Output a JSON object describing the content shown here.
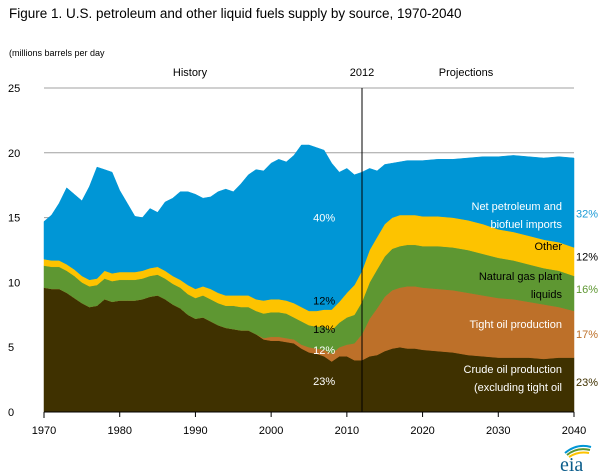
{
  "header": {
    "title": "Figure 1. U.S. petroleum and other liquid fuels supply by source, 1970-2040",
    "units": "(millions barrels per day"
  },
  "logo": {
    "text": "eia",
    "icon": "eia-logo-icon"
  },
  "colors": {
    "crude": "#3f3100",
    "tight": "#bd7029",
    "ngpl": "#5e9732",
    "other": "#fdc300",
    "imports": "#0096d6",
    "grid": "#a0a0a0"
  },
  "chart_data": {
    "type": "area",
    "title": "Figure 1. U.S. petroleum and other liquid fuels supply by source, 1970-2040",
    "ylabel": "millions barrels per day",
    "xlabel": "",
    "xlim": [
      1970,
      2040
    ],
    "ylim": [
      0,
      25
    ],
    "yticks": [
      0,
      5,
      10,
      15,
      20,
      25
    ],
    "xticks": [
      1970,
      1980,
      1990,
      2000,
      2010,
      2020,
      2030,
      2040
    ],
    "grid": true,
    "stacked": true,
    "divider": {
      "year": 2012,
      "label": "2012",
      "left_label": "History",
      "right_label": "Projections"
    },
    "x": [
      1970,
      1971,
      1972,
      1973,
      1974,
      1975,
      1976,
      1977,
      1978,
      1979,
      1980,
      1981,
      1982,
      1983,
      1984,
      1985,
      1986,
      1987,
      1988,
      1989,
      1990,
      1991,
      1992,
      1993,
      1994,
      1995,
      1996,
      1997,
      1998,
      1999,
      2000,
      2001,
      2002,
      2003,
      2004,
      2005,
      2006,
      2007,
      2008,
      2009,
      2010,
      2011,
      2012,
      2013,
      2014,
      2015,
      2016,
      2017,
      2018,
      2019,
      2020,
      2022,
      2024,
      2026,
      2028,
      2030,
      2032,
      2034,
      2036,
      2038,
      2040
    ],
    "series": [
      {
        "name": "Crude oil production (excluding tight oil)",
        "color": "#3f3100",
        "values": [
          9.6,
          9.5,
          9.5,
          9.2,
          8.8,
          8.4,
          8.1,
          8.2,
          8.7,
          8.5,
          8.6,
          8.6,
          8.6,
          8.7,
          8.9,
          9.0,
          8.7,
          8.3,
          8.0,
          7.5,
          7.2,
          7.3,
          7.0,
          6.7,
          6.5,
          6.4,
          6.3,
          6.3,
          6.0,
          5.6,
          5.5,
          5.5,
          5.4,
          5.3,
          4.9,
          4.6,
          4.5,
          4.3,
          3.9,
          4.3,
          4.3,
          4.0,
          4.0,
          4.3,
          4.4,
          4.7,
          4.9,
          5.0,
          4.9,
          4.9,
          4.8,
          4.7,
          4.6,
          4.4,
          4.3,
          4.2,
          4.2,
          4.2,
          4.1,
          4.2,
          4.2
        ]
      },
      {
        "name": "Tight oil production",
        "color": "#bd7029",
        "values": [
          0,
          0,
          0,
          0,
          0,
          0,
          0,
          0,
          0,
          0,
          0,
          0,
          0,
          0,
          0,
          0,
          0,
          0,
          0,
          0,
          0,
          0,
          0,
          0,
          0,
          0,
          0,
          0,
          0,
          0.1,
          0.3,
          0.3,
          0.3,
          0.3,
          0.3,
          0.4,
          0.4,
          0.5,
          0.6,
          0.7,
          0.9,
          1.3,
          2.0,
          2.9,
          3.6,
          4.2,
          4.5,
          4.6,
          4.8,
          4.8,
          4.8,
          4.8,
          4.8,
          4.8,
          4.7,
          4.6,
          4.5,
          4.3,
          4.2,
          3.9,
          3.6
        ]
      },
      {
        "name": "Natural gas plant liquids",
        "color": "#5e9732",
        "values": [
          1.7,
          1.7,
          1.7,
          1.7,
          1.7,
          1.6,
          1.6,
          1.6,
          1.6,
          1.6,
          1.6,
          1.6,
          1.6,
          1.6,
          1.6,
          1.6,
          1.6,
          1.6,
          1.6,
          1.6,
          1.6,
          1.7,
          1.7,
          1.7,
          1.7,
          1.8,
          1.8,
          1.8,
          1.8,
          1.9,
          1.9,
          1.9,
          1.9,
          1.7,
          1.8,
          1.7,
          1.7,
          1.8,
          1.8,
          1.9,
          2.1,
          2.2,
          2.5,
          2.8,
          3.0,
          3.1,
          3.2,
          3.2,
          3.2,
          3.2,
          3.2,
          3.3,
          3.3,
          3.3,
          3.2,
          3.1,
          3.0,
          2.9,
          2.8,
          2.8,
          2.7
        ]
      },
      {
        "name": "Other",
        "color": "#fdc300",
        "values": [
          0.5,
          0.5,
          0.5,
          0.5,
          0.5,
          0.5,
          0.5,
          0.5,
          0.6,
          0.6,
          0.6,
          0.6,
          0.6,
          0.6,
          0.6,
          0.6,
          0.6,
          0.6,
          0.6,
          0.7,
          0.7,
          0.7,
          0.8,
          0.8,
          0.8,
          0.8,
          0.9,
          0.9,
          0.9,
          1.0,
          1.0,
          1.0,
          1.0,
          1.1,
          1.1,
          1.1,
          1.2,
          1.3,
          1.6,
          1.6,
          1.9,
          2.3,
          2.4,
          2.5,
          2.5,
          2.5,
          2.4,
          2.4,
          2.3,
          2.3,
          2.3,
          2.3,
          2.3,
          2.3,
          2.3,
          2.2,
          2.2,
          2.2,
          2.2,
          2.2,
          2.2
        ]
      },
      {
        "name": "Net petroleum and biofuel imports",
        "color": "#0096d6",
        "values": [
          2.9,
          3.5,
          4.4,
          5.9,
          5.8,
          5.8,
          7.2,
          8.6,
          7.8,
          7.8,
          6.3,
          5.3,
          4.3,
          4.1,
          4.6,
          4.2,
          5.3,
          6.0,
          6.8,
          7.2,
          7.3,
          6.8,
          7.1,
          7.8,
          8.2,
          8.0,
          8.6,
          9.3,
          10.0,
          10.0,
          10.5,
          10.8,
          10.7,
          11.4,
          12.5,
          12.8,
          12.6,
          12.3,
          11.3,
          10.0,
          9.6,
          8.5,
          7.6,
          6.3,
          5.1,
          4.6,
          4.2,
          4.1,
          4.2,
          4.2,
          4.3,
          4.4,
          4.5,
          4.8,
          5.2,
          5.6,
          5.9,
          6.1,
          6.3,
          6.6,
          6.9
        ]
      }
    ],
    "annotations": {
      "in_chart": [
        {
          "text": "40%",
          "series": "Net petroleum and biofuel imports",
          "year": 2007,
          "value": 15.0,
          "color": "#ffffff"
        },
        {
          "text": "12%",
          "series": "Other",
          "year": 2007,
          "value": 8.6,
          "color": "#000000"
        },
        {
          "text": "13%",
          "series": "Natural gas plant liquids",
          "year": 2007,
          "value": 6.4,
          "color": "#000000"
        },
        {
          "text": "12%",
          "series": "Tight oil production",
          "year": 2007,
          "value": 4.8,
          "color": "#ffffff"
        },
        {
          "text": "23%",
          "series": "Crude oil production (excluding tight oil)",
          "year": 2007,
          "value": 2.4,
          "color": "#ffffff"
        }
      ],
      "series_labels": [
        {
          "lines": [
            "Net petroleum and",
            "biofuel imports"
          ],
          "color": "#ffffff",
          "value": 15.6
        },
        {
          "lines": [
            "Other"
          ],
          "color": "#000000",
          "value": 12.5
        },
        {
          "lines": [
            "Natural gas plant",
            "liquids"
          ],
          "color": "#000000",
          "value": 10.2
        },
        {
          "lines": [
            "Tight oil production"
          ],
          "color": "#ffffff",
          "value": 6.5
        },
        {
          "lines": [
            "Crude oil production",
            "(excluding tight oil"
          ],
          "color": "#ffffff",
          "value": 3.0
        }
      ],
      "end_shares": [
        {
          "text": "32%",
          "series": "Net petroleum and biofuel imports",
          "color": "#1a9ad6",
          "value": 15.3
        },
        {
          "text": "12%",
          "series": "Other",
          "color": "#000000",
          "value": 12.0
        },
        {
          "text": "16%",
          "series": "Natural gas plant liquids",
          "color": "#5e9732",
          "value": 9.5
        },
        {
          "text": "17%",
          "series": "Tight oil production",
          "color": "#bd7029",
          "value": 6.0
        },
        {
          "text": "23%",
          "series": "Crude oil production (excluding tight oil)",
          "color": "#3f3100",
          "value": 2.3
        }
      ]
    }
  }
}
